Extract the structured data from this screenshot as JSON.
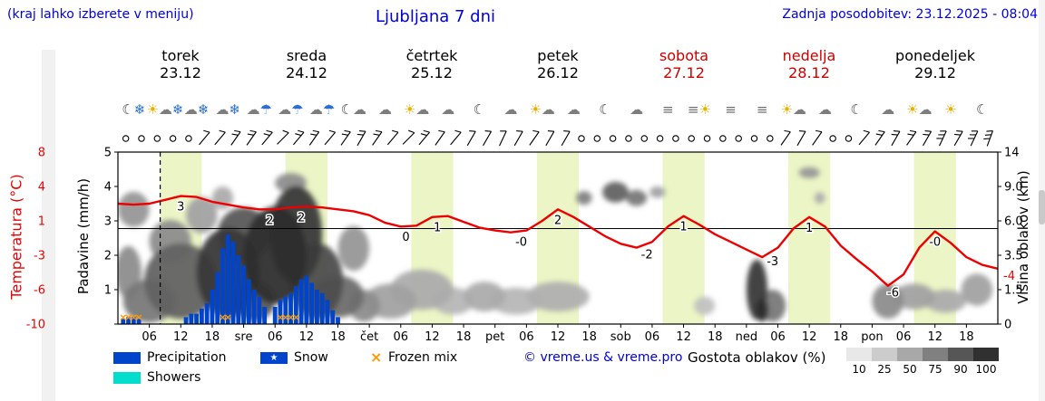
{
  "header": {
    "hint": "(kraj lahko izberete v meniju)",
    "title": "Ljubljana 7 dni",
    "updated": "Zadnja posodobitev: 23.12.2025 - 08:04"
  },
  "days": [
    {
      "name": "torek",
      "date": "23.12",
      "weekend": false
    },
    {
      "name": "sreda",
      "date": "24.12",
      "weekend": false
    },
    {
      "name": "četrtek",
      "date": "25.12",
      "weekend": false
    },
    {
      "name": "petek",
      "date": "26.12",
      "weekend": false
    },
    {
      "name": "sobota",
      "date": "27.12",
      "weekend": true
    },
    {
      "name": "nedelja",
      "date": "28.12",
      "weekend": true
    },
    {
      "name": "ponedeljek",
      "date": "29.12",
      "weekend": false
    }
  ],
  "axes": {
    "temp_label": "Temperatura (°C)",
    "precip_label": "Padavine (mm/h)",
    "cloud_label": "Višina oblakov (km)",
    "temp_ticks": [
      "8",
      "4",
      "1",
      "-3",
      "-6",
      "-10"
    ],
    "precip_ticks": [
      "5",
      "4",
      "3",
      "2",
      "1"
    ],
    "cloud_ticks": [
      "14",
      "9.0",
      "6.0",
      "3.5",
      "1.5",
      "0"
    ],
    "end_temp_label": "-4"
  },
  "legend": {
    "precipitation": "Precipitation",
    "snow": "Snow",
    "snow_star": "★",
    "frozen": "Frozen mix",
    "frozen_symbol": "×",
    "showers": "Showers",
    "copyright": "© vreme.us & vreme.pro",
    "cloud_density": "Gostota oblakov (%)",
    "density_ticks": [
      "10",
      "25",
      "50",
      "75",
      "90",
      "100"
    ]
  },
  "colors": {
    "header_blue": "#0000dd",
    "weekend_red": "#cc0000",
    "temp_red": "#ee0000",
    "precip_blue": "#0044cc",
    "showers_cyan": "#00ddcc",
    "frozen_orange": "#ff9900",
    "daylight_band": "#ebf5c5",
    "icon": {
      "sun": "#e8b000",
      "cloud": "#7d7d7d",
      "moon": "#444444",
      "snow": "#2b6fd4",
      "rain": "#2b6fd4",
      "fog": "#707070"
    },
    "density_scale": [
      "#e8e8e8",
      "#cccccc",
      "#a8a8a8",
      "#808080",
      "#565656",
      "#303030"
    ]
  },
  "chart_data": {
    "type": "composite",
    "x_unit": "hour (0 = torek 00:00)",
    "x_range": [
      0,
      168
    ],
    "now_hour": 8.07,
    "daylight_bands": [
      [
        8,
        16
      ],
      [
        32,
        40
      ],
      [
        56,
        64
      ],
      [
        80,
        88
      ],
      [
        104,
        112
      ],
      [
        128,
        136
      ],
      [
        152,
        160
      ]
    ],
    "temperature": {
      "type": "line",
      "axis_range": [
        -10,
        8
      ],
      "hours": [
        0,
        3,
        6,
        9,
        12,
        15,
        18,
        21,
        24,
        27,
        30,
        33,
        36,
        39,
        42,
        45,
        48,
        51,
        54,
        57,
        60,
        63,
        66,
        69,
        72,
        75,
        78,
        81,
        84,
        87,
        90,
        93,
        96,
        99,
        102,
        105,
        108,
        111,
        114,
        117,
        120,
        123,
        126,
        129,
        132,
        135,
        138,
        141,
        144,
        147,
        150,
        153,
        156,
        159,
        162,
        165,
        168
      ],
      "values": [
        2.6,
        2.5,
        2.6,
        3.0,
        3.4,
        3.3,
        2.8,
        2.5,
        2.2,
        2.0,
        2.0,
        2.2,
        2.3,
        2.2,
        2.0,
        1.8,
        1.4,
        0.6,
        0.2,
        0.3,
        1.2,
        1.3,
        0.7,
        0.1,
        -0.2,
        -0.4,
        -0.2,
        0.8,
        2.0,
        1.2,
        0.2,
        -0.8,
        -1.6,
        -2.0,
        -1.4,
        0.2,
        1.3,
        0.4,
        -0.6,
        -1.4,
        -2.2,
        -3.0,
        -2.0,
        0.0,
        1.2,
        0.2,
        -1.8,
        -3.2,
        -4.5,
        -6.0,
        -4.8,
        -2.0,
        -0.3,
        -1.5,
        -3.0,
        -3.8,
        -4.2
      ],
      "point_labels": [
        {
          "h": 12,
          "t": "3"
        },
        {
          "h": 29,
          "t": "2"
        },
        {
          "h": 35,
          "t": "2"
        },
        {
          "h": 55,
          "t": "0"
        },
        {
          "h": 61,
          "t": "1"
        },
        {
          "h": 77,
          "t": "-0"
        },
        {
          "h": 84,
          "t": "2"
        },
        {
          "h": 101,
          "t": "-2"
        },
        {
          "h": 108,
          "t": "1"
        },
        {
          "h": 125,
          "t": "-3"
        },
        {
          "h": 132,
          "t": "1"
        },
        {
          "h": 148,
          "t": "-6"
        },
        {
          "h": 156,
          "t": "-0"
        }
      ]
    },
    "precipitation": {
      "type": "bar",
      "axis_range": [
        0,
        5
      ],
      "bars": [
        [
          1,
          0.15
        ],
        [
          2,
          0.2
        ],
        [
          3,
          0.2
        ],
        [
          4,
          0.15
        ],
        [
          13,
          0.2
        ],
        [
          14,
          0.3
        ],
        [
          15,
          0.3
        ],
        [
          16,
          0.45
        ],
        [
          17,
          0.6
        ],
        [
          18,
          1.0
        ],
        [
          19,
          1.5
        ],
        [
          20,
          2.2
        ],
        [
          21,
          2.6
        ],
        [
          22,
          2.4
        ],
        [
          23,
          2.0
        ],
        [
          24,
          1.7
        ],
        [
          25,
          1.3
        ],
        [
          26,
          1.0
        ],
        [
          27,
          0.8
        ],
        [
          28,
          0.5
        ],
        [
          30,
          0.5
        ],
        [
          31,
          0.7
        ],
        [
          32,
          0.8
        ],
        [
          33,
          0.9
        ],
        [
          34,
          1.1
        ],
        [
          35,
          1.3
        ],
        [
          36,
          1.4
        ],
        [
          37,
          1.2
        ],
        [
          38,
          1.0
        ],
        [
          39,
          0.9
        ],
        [
          40,
          0.7
        ],
        [
          41,
          0.4
        ],
        [
          42,
          0.2
        ]
      ]
    },
    "frozen_mix_hours": [
      1,
      2,
      3,
      4,
      20,
      21,
      31,
      32,
      33,
      34
    ],
    "cloud_height_axis": {
      "km_ticks": [
        0,
        1.5,
        3.5,
        6,
        9,
        14
      ]
    },
    "clouds": [
      {
        "h": 3,
        "km": 7,
        "w": 3,
        "t": 1.5,
        "d": 40
      },
      {
        "h": 2,
        "km": 2.5,
        "w": 2.5,
        "t": 1.5,
        "d": 45
      },
      {
        "h": 6,
        "km": 1,
        "w": 5,
        "t": 1,
        "d": 55
      },
      {
        "h": 12,
        "km": 2,
        "w": 7,
        "t": 2,
        "d": 65
      },
      {
        "h": 10,
        "km": 4.5,
        "w": 4,
        "t": 1.5,
        "d": 45
      },
      {
        "h": 16,
        "km": 6.5,
        "w": 3,
        "t": 1.5,
        "d": 35
      },
      {
        "h": 20,
        "km": 8,
        "w": 2,
        "t": 1,
        "d": 30
      },
      {
        "h": 21,
        "km": 2.5,
        "w": 6,
        "t": 2.5,
        "d": 85
      },
      {
        "h": 24,
        "km": 5,
        "w": 5,
        "t": 2,
        "d": 70
      },
      {
        "h": 26,
        "km": 1,
        "w": 4,
        "t": 0.9,
        "d": 70
      },
      {
        "h": 30,
        "km": 3.5,
        "w": 6,
        "t": 3,
        "d": 90
      },
      {
        "h": 34,
        "km": 5,
        "w": 5,
        "t": 3.5,
        "d": 85
      },
      {
        "h": 33,
        "km": 9.5,
        "w": 3,
        "t": 1.2,
        "d": 45
      },
      {
        "h": 38,
        "km": 2,
        "w": 5,
        "t": 2,
        "d": 75
      },
      {
        "h": 42,
        "km": 1.2,
        "w": 5,
        "t": 1,
        "d": 60
      },
      {
        "h": 45,
        "km": 4,
        "w": 3,
        "t": 1.5,
        "d": 40
      },
      {
        "h": 47,
        "km": 0.8,
        "w": 3,
        "t": 0.7,
        "d": 45
      },
      {
        "h": 52,
        "km": 1,
        "w": 5,
        "t": 0.8,
        "d": 35
      },
      {
        "h": 58,
        "km": 1.5,
        "w": 6,
        "t": 1,
        "d": 30
      },
      {
        "h": 64,
        "km": 1,
        "w": 4,
        "t": 0.6,
        "d": 25
      },
      {
        "h": 70,
        "km": 1.2,
        "w": 4,
        "t": 0.7,
        "d": 30
      },
      {
        "h": 76,
        "km": 1,
        "w": 5,
        "t": 0.6,
        "d": 25
      },
      {
        "h": 84,
        "km": 1.2,
        "w": 6,
        "t": 0.7,
        "d": 28
      },
      {
        "h": 89,
        "km": 8,
        "w": 1.5,
        "t": 0.6,
        "d": 50
      },
      {
        "h": 95,
        "km": 8.5,
        "w": 2.5,
        "t": 1,
        "d": 65
      },
      {
        "h": 99,
        "km": 8,
        "w": 2,
        "t": 0.7,
        "d": 55
      },
      {
        "h": 103,
        "km": 8.5,
        "w": 1.5,
        "t": 0.5,
        "d": 35
      },
      {
        "h": 112,
        "km": 0.8,
        "w": 2,
        "t": 0.4,
        "d": 20
      },
      {
        "h": 122,
        "km": 1.5,
        "w": 2,
        "t": 1.5,
        "d": 85
      },
      {
        "h": 123,
        "km": 0.6,
        "w": 1.2,
        "t": 0.5,
        "d": 95
      },
      {
        "h": 125,
        "km": 0.8,
        "w": 2.5,
        "t": 0.7,
        "d": 55
      },
      {
        "h": 132,
        "km": 11,
        "w": 2,
        "t": 0.8,
        "d": 40
      },
      {
        "h": 134,
        "km": 8,
        "w": 1,
        "t": 0.5,
        "d": 30
      },
      {
        "h": 147,
        "km": 1,
        "w": 3,
        "t": 0.8,
        "d": 45
      },
      {
        "h": 152,
        "km": 1.2,
        "w": 4,
        "t": 0.6,
        "d": 35
      },
      {
        "h": 158,
        "km": 1,
        "w": 4,
        "t": 0.5,
        "d": 30
      },
      {
        "h": 164,
        "km": 1.5,
        "w": 3,
        "t": 0.8,
        "d": 35
      }
    ],
    "weather_icons": [
      "☾❄",
      "☀☁❄",
      "☁❄",
      "☁❄",
      "☁☂",
      "☁☂",
      "☁☂",
      "☾☁",
      "☁",
      "☀☁",
      "☁",
      "☾",
      "☁",
      "☀☁",
      "☁",
      "☾",
      "☁",
      "≡",
      "≡☀",
      "≡",
      "≡",
      "☀☁",
      "☁",
      "☾",
      "☁",
      "☀☁",
      "☀",
      "☾"
    ],
    "wind_symbols": [
      "c",
      "c",
      "c",
      "c",
      "c",
      "b50:1",
      "b50:1",
      "b55:2",
      "b55:2",
      "b50:2",
      "b45:1",
      "b50:2",
      "b55:2",
      "b50:1",
      "b55:2",
      "b60:2",
      "b55:2",
      "b50:1",
      "b45:1",
      "b50:2",
      "b55:1",
      "b50:1",
      "b60:1",
      "b60:1",
      "b65:1",
      "b60:1",
      "b55:1",
      "b60:1",
      "b60:1",
      "c",
      "c",
      "c",
      "c",
      "c",
      "c",
      "c",
      "c",
      "c",
      "c",
      "c",
      "c",
      "c",
      "b55:1",
      "b60:1",
      "b55:1",
      "c",
      "c",
      "b50:1",
      "b55:2",
      "b60:2",
      "b55:2",
      "b60:2",
      "b65:3",
      "b60:2",
      "b65:3",
      "b70:3"
    ],
    "x_ticks": [
      {
        "h": 6,
        "t": "06"
      },
      {
        "h": 12,
        "t": "12"
      },
      {
        "h": 18,
        "t": "18"
      },
      {
        "h": 24,
        "t": "sre"
      },
      {
        "h": 30,
        "t": "06"
      },
      {
        "h": 36,
        "t": "12"
      },
      {
        "h": 42,
        "t": "18"
      },
      {
        "h": 48,
        "t": "čet"
      },
      {
        "h": 54,
        "t": "06"
      },
      {
        "h": 60,
        "t": "12"
      },
      {
        "h": 66,
        "t": "18"
      },
      {
        "h": 72,
        "t": "pet"
      },
      {
        "h": 78,
        "t": "06"
      },
      {
        "h": 84,
        "t": "12"
      },
      {
        "h": 90,
        "t": "18"
      },
      {
        "h": 96,
        "t": "sob"
      },
      {
        "h": 102,
        "t": "06"
      },
      {
        "h": 108,
        "t": "12"
      },
      {
        "h": 114,
        "t": "18"
      },
      {
        "h": 120,
        "t": "ned"
      },
      {
        "h": 126,
        "t": "06"
      },
      {
        "h": 132,
        "t": "12"
      },
      {
        "h": 138,
        "t": "18"
      },
      {
        "h": 144,
        "t": "pon"
      },
      {
        "h": 150,
        "t": "06"
      },
      {
        "h": 156,
        "t": "12"
      },
      {
        "h": 162,
        "t": "18"
      }
    ]
  }
}
